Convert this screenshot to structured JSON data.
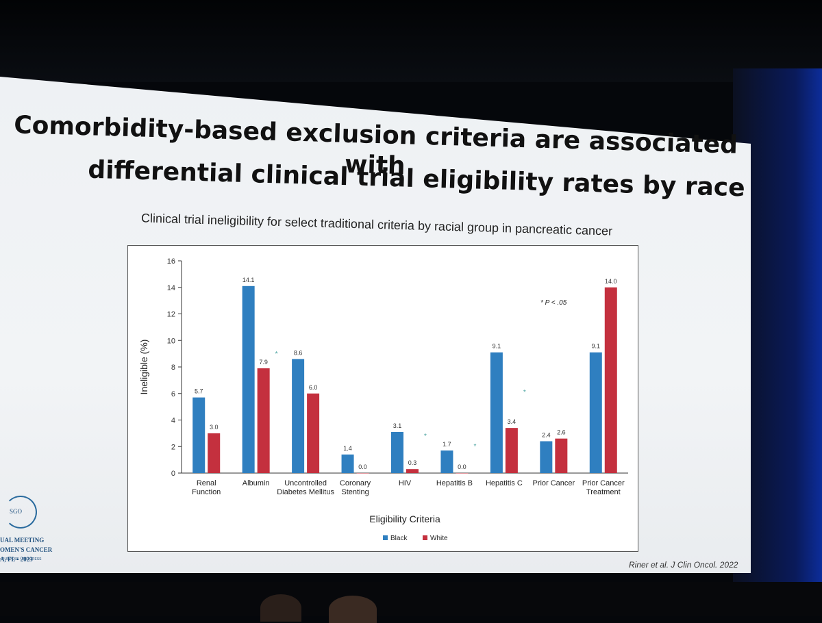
{
  "slide": {
    "title_lines": [
      "Comorbidity-based exclusion criteria are associated with",
      "differential clinical trial eligibility rates by race"
    ],
    "subtitle": "Clinical trial ineligibility for select traditional criteria by racial group in pancreatic cancer",
    "citation": "Riner et al. J Clin Oncol. 2022",
    "logo": {
      "mark": "SGO",
      "lines": [
        "UAL MEETING",
        "OMEN'S CANCER",
        "A, FL • 2023"
      ],
      "tagline": "• PURPOSE • PROGRESS"
    }
  },
  "chart_data": {
    "type": "bar",
    "xlabel": "Eligibility Criteria",
    "ylabel": "Ineligible (%)",
    "ylim": [
      0,
      16
    ],
    "yticks": [
      0,
      2,
      4,
      6,
      8,
      10,
      12,
      14,
      16
    ],
    "grid": false,
    "categories": [
      [
        "Renal",
        "Function"
      ],
      [
        "Albumin"
      ],
      [
        "Uncontrolled",
        "Diabetes Mellitus"
      ],
      [
        "Coronary",
        "Stenting"
      ],
      [
        "HIV"
      ],
      [
        "Hepatitis B"
      ],
      [
        "Hepatitis C"
      ],
      [
        "Prior Cancer"
      ],
      [
        "Prior Cancer",
        "Treatment"
      ]
    ],
    "series": [
      {
        "name": "Black",
        "color": "#2f7fc0",
        "values": [
          5.7,
          14.1,
          8.6,
          1.4,
          3.1,
          1.7,
          9.1,
          2.4,
          9.1
        ],
        "labels": [
          "5.7",
          "14.1",
          "8.6",
          "1.4",
          "3.1",
          "1.7",
          "9.1",
          "2.4",
          "9.1"
        ]
      },
      {
        "name": "White",
        "color": "#c4303e",
        "values": [
          3.0,
          7.9,
          6.0,
          0.0,
          0.3,
          0.0,
          3.4,
          2.6,
          14.0
        ],
        "labels": [
          "3.0",
          "7.9",
          "6.0",
          "0.0",
          "0.3",
          "0.0",
          "3.4",
          "2.6",
          "14.0"
        ]
      }
    ],
    "significance_marker": "*",
    "significant_categories": [
      1,
      4,
      5,
      6
    ],
    "annotation": "P < .05",
    "legend_position": "bottom-left"
  }
}
